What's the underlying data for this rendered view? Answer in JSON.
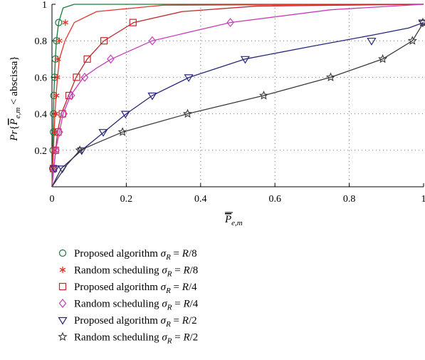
{
  "chart_data": {
    "type": "line",
    "title": "",
    "xlabel": "P̄_{e,m}",
    "ylabel": "Pr{P̄_{e,m} < abscissa}",
    "xlim": [
      0,
      1
    ],
    "ylim": [
      0,
      1
    ],
    "x_ticks": [
      "0",
      "0.2",
      "0.4",
      "0.6",
      "0.8",
      "1"
    ],
    "y_ticks": [
      "0.2",
      "0.4",
      "0.6",
      "0.8",
      "1"
    ],
    "grid": true,
    "legend_position": "below",
    "series": [
      {
        "name": "Proposed algorithm σR = R/8",
        "label_parts": [
          "Proposed algorithm ",
          "R",
          " = ",
          "R",
          "/8"
        ],
        "color": "#1a7a3a",
        "marker": "circle",
        "x": [
          0.0,
          0.001,
          0.002,
          0.003,
          0.004,
          0.005,
          0.007,
          0.009,
          0.012,
          0.018,
          0.03,
          0.06,
          1.0
        ],
        "y": [
          0.0,
          0.1,
          0.2,
          0.3,
          0.4,
          0.5,
          0.6,
          0.7,
          0.8,
          0.9,
          0.98,
          1.0,
          1.0
        ],
        "markers": [
          [
            0.002,
            0.1
          ],
          [
            0.003,
            0.2
          ],
          [
            0.004,
            0.3
          ],
          [
            0.004,
            0.4
          ],
          [
            0.005,
            0.5
          ],
          [
            0.007,
            0.6
          ],
          [
            0.009,
            0.7
          ],
          [
            0.012,
            0.8
          ],
          [
            0.018,
            0.9
          ]
        ]
      },
      {
        "name": "Random scheduling σR = R/8",
        "label_parts": [
          "Random scheduling ",
          "R",
          " = ",
          "R",
          "/8"
        ],
        "color": "#e8332a",
        "marker": "asterisk",
        "x": [
          0.0,
          0.002,
          0.004,
          0.006,
          0.008,
          0.011,
          0.015,
          0.02,
          0.035,
          0.06,
          0.12,
          0.3,
          1.0
        ],
        "y": [
          0.0,
          0.1,
          0.2,
          0.3,
          0.4,
          0.5,
          0.6,
          0.7,
          0.8,
          0.9,
          0.96,
          0.995,
          1.0
        ],
        "markers": [
          [
            0.004,
            0.1
          ],
          [
            0.006,
            0.2
          ],
          [
            0.008,
            0.3
          ],
          [
            0.01,
            0.4
          ],
          [
            0.012,
            0.5
          ],
          [
            0.014,
            0.6
          ],
          [
            0.016,
            0.7
          ],
          [
            0.02,
            0.8
          ],
          [
            0.036,
            0.9
          ]
        ]
      },
      {
        "name": "Proposed algorithm σR = R/4",
        "label_parts": [
          "Proposed algorithm ",
          "R",
          " = ",
          "R",
          "/4"
        ],
        "color": "#c0282d",
        "marker": "square",
        "x": [
          0.0,
          0.005,
          0.01,
          0.015,
          0.025,
          0.045,
          0.065,
          0.095,
          0.14,
          0.22,
          0.35,
          0.55,
          1.0
        ],
        "y": [
          0.0,
          0.1,
          0.2,
          0.3,
          0.4,
          0.5,
          0.6,
          0.7,
          0.8,
          0.9,
          0.96,
          0.99,
          1.0
        ],
        "markers": [
          [
            0.004,
            0.1
          ],
          [
            0.009,
            0.2
          ],
          [
            0.016,
            0.3
          ],
          [
            0.028,
            0.4
          ],
          [
            0.046,
            0.5
          ],
          [
            0.066,
            0.6
          ],
          [
            0.095,
            0.7
          ],
          [
            0.14,
            0.8
          ],
          [
            0.218,
            0.9
          ]
        ]
      },
      {
        "name": "Random scheduling σR = R/4",
        "label_parts": [
          "Random scheduling ",
          "R",
          " = ",
          "R",
          "/4"
        ],
        "color": "#c83cb8",
        "marker": "diamond",
        "x": [
          0.0,
          0.005,
          0.01,
          0.02,
          0.03,
          0.05,
          0.085,
          0.12,
          0.16,
          0.27,
          0.48,
          0.75,
          1.0
        ],
        "y": [
          0.0,
          0.1,
          0.2,
          0.3,
          0.4,
          0.5,
          0.6,
          0.65,
          0.7,
          0.8,
          0.9,
          0.97,
          1.0
        ],
        "markers": [
          [
            0.004,
            0.1
          ],
          [
            0.01,
            0.2
          ],
          [
            0.02,
            0.3
          ],
          [
            0.032,
            0.4
          ],
          [
            0.052,
            0.5
          ],
          [
            0.088,
            0.6
          ],
          [
            0.158,
            0.7
          ],
          [
            0.27,
            0.8
          ],
          [
            0.48,
            0.9
          ]
        ]
      },
      {
        "name": "Proposed algorithm σR = R/2",
        "label_parts": [
          "Proposed algorithm ",
          "R",
          " = ",
          "R",
          "/2"
        ],
        "color": "#27277a",
        "marker": "triangle-down",
        "x": [
          0.0,
          0.025,
          0.08,
          0.14,
          0.2,
          0.27,
          0.37,
          0.52,
          0.7,
          0.86,
          0.96,
          1.0
        ],
        "y": [
          0.0,
          0.1,
          0.2,
          0.3,
          0.4,
          0.5,
          0.6,
          0.7,
          0.77,
          0.83,
          0.87,
          0.9
        ],
        "markers": [
          [
            0.008,
            0.1
          ],
          [
            0.028,
            0.1
          ],
          [
            0.08,
            0.2
          ],
          [
            0.138,
            0.3
          ],
          [
            0.198,
            0.4
          ],
          [
            0.27,
            0.5
          ],
          [
            0.368,
            0.6
          ],
          [
            0.52,
            0.7
          ],
          [
            0.86,
            0.8
          ],
          [
            0.998,
            0.9
          ]
        ]
      },
      {
        "name": "Random scheduling σR = R/2",
        "label_parts": [
          "Random scheduling ",
          "R",
          " = ",
          "R",
          "/2"
        ],
        "color": "#3a3a3a",
        "marker": "star",
        "x": [
          0.0,
          0.04,
          0.075,
          0.19,
          0.365,
          0.57,
          0.75,
          0.89,
          0.97,
          1.0
        ],
        "y": [
          0.0,
          0.12,
          0.2,
          0.3,
          0.4,
          0.5,
          0.6,
          0.7,
          0.8,
          0.9
        ],
        "markers": [
          [
            0.075,
            0.2
          ],
          [
            0.19,
            0.3
          ],
          [
            0.365,
            0.4
          ],
          [
            0.57,
            0.5
          ],
          [
            0.75,
            0.6
          ],
          [
            0.89,
            0.7
          ],
          [
            0.97,
            0.8
          ],
          [
            0.998,
            0.9
          ]
        ]
      }
    ]
  }
}
